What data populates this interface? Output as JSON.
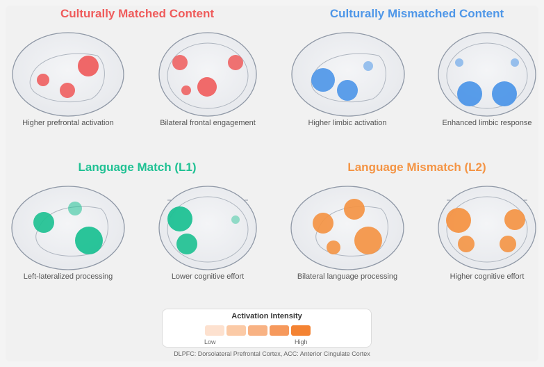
{
  "sections": {
    "cultural_match": {
      "title": "Culturally Matched Content",
      "color": "#ef5b5b"
    },
    "cultural_mismatch": {
      "title": "Culturally Mismatched Content",
      "color": "#4f97e8"
    },
    "language_match": {
      "title": "Language Match (L1)",
      "color": "#1fc193"
    },
    "language_mismatch": {
      "title": "Language Mismatch (L2)",
      "color": "#f49444"
    }
  },
  "captions": {
    "prefrontal": "Higher prefrontal activation",
    "bilateral_frontal": "Bilateral frontal engagement",
    "limbic": "Higher limbic activation",
    "enhanced_limbic": "Enhanced limbic response",
    "left_lateral": "Left-lateralized processing",
    "lower_effort": "Lower cognitive effort",
    "bilateral_language": "Bilateral language processing",
    "higher_effort": "Higher cognitive effort"
  },
  "legend": {
    "title": "Activation Intensity",
    "low": "Low",
    "high": "High",
    "colors": [
      "#fde1cf",
      "#fbcaa6",
      "#f8b283",
      "#f6995c",
      "#f48333"
    ]
  },
  "footnote": "DLPFC: Dorsolateral Prefrontal Cortex, ACC: Anterior Cingulate Cortex"
}
